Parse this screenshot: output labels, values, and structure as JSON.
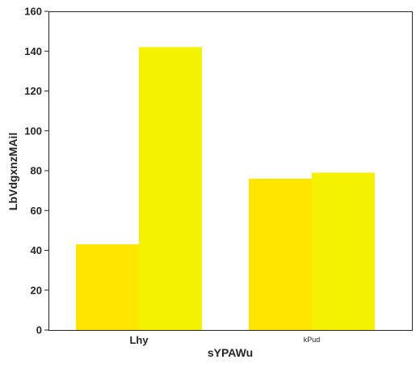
{
  "chart_data": {
    "type": "bar",
    "categories": [
      "Lhy",
      "kPud"
    ],
    "series": [
      {
        "values": [
          43,
          76
        ],
        "color": "#FFE600"
      },
      {
        "values": [
          142,
          79
        ],
        "color": "#F5F200"
      }
    ],
    "xlabel": "sYPAWu",
    "ylabel": "LbVdgxnzMAil",
    "ylim": [
      0,
      160
    ],
    "yticks": [
      "0",
      "20",
      "40",
      "60",
      "80",
      "100",
      "120",
      "140",
      "160"
    ],
    "grid": false,
    "legend": "none"
  }
}
